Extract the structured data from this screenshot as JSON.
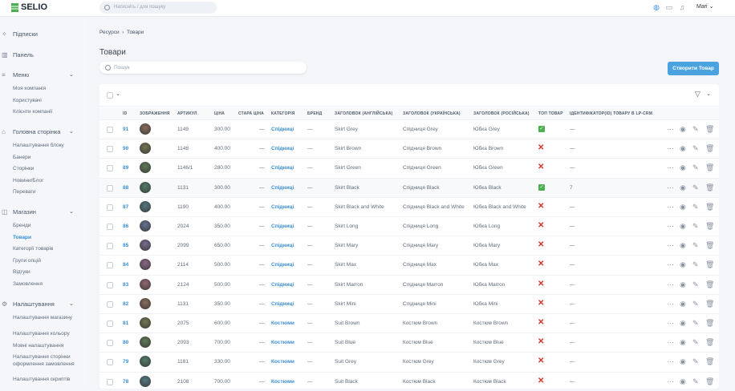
{
  "header": {
    "logo": "SELIO",
    "search_placeholder": "Натисніть / для пошуку",
    "user": "Mari"
  },
  "sidebar": {
    "top": [
      {
        "label": "Підписки",
        "icon": "sparkles-icon"
      },
      {
        "label": "Панель",
        "icon": "chart-icon"
      }
    ],
    "groups": [
      {
        "label": "Меню",
        "icon": "menu-icon",
        "items": [
          "Моя компанія",
          "Користувачі",
          "Клієнти компанії"
        ]
      },
      {
        "label": "Головна сторінка",
        "icon": "home-icon",
        "items": [
          "Налаштування блоку",
          "Банери",
          "Сторінки",
          "Новини/Блог",
          "Переваги"
        ]
      },
      {
        "label": "Магазин",
        "icon": "bag-icon",
        "items": [
          "Бренди",
          "Товари",
          "Категорії товарів",
          "Групи опцій",
          "Відгуки",
          "Замовлення"
        ]
      },
      {
        "label": "Налаштування",
        "icon": "gear-icon",
        "items": [
          "Налаштування магазину",
          "Налаштування кольору",
          "Мовні налаштування",
          "Налаштування сторінки оформлення замовлення",
          "Налаштування скриптів"
        ]
      }
    ],
    "active": "Товари"
  },
  "breadcrumb": [
    "Ресурси",
    "Товари"
  ],
  "page_title": "Товари",
  "search_placeholder": "Пошук",
  "create_button": "Створити Товар",
  "table": {
    "columns": [
      "ID",
      "ЗОБРАЖЕННЯ",
      "АРТИКУЛ",
      "ЦІНА",
      "СТАРА ЦІНА",
      "КАТЕГОРІЯ",
      "БРЕНД",
      "ЗАГОЛОВОК (АНГЛІЙСЬКА)",
      "ЗАГОЛОВОК (УКРАЇНСЬКА)",
      "ЗАГОЛОВОК (РОСІЙСЬКА)",
      "ТОП ТОВАР",
      "ІДЕНТИФІКАТОР(ID) ТОВАРУ В LP-CRM"
    ],
    "rows": [
      {
        "id": "91",
        "sku": "1149",
        "price": "300.00",
        "old": "—",
        "cat": "Спідниці",
        "brand": "—",
        "en": "Skirt Grey",
        "uk": "Спідниця Grey",
        "ru": "Юбка Grey",
        "top": true,
        "crm": "—"
      },
      {
        "id": "90",
        "sku": "1148",
        "price": "400.00",
        "old": "—",
        "cat": "Спідниці",
        "brand": "—",
        "en": "Skirt Brown",
        "uk": "Спідниця Brown",
        "ru": "Юбка Brown",
        "top": false,
        "crm": "—"
      },
      {
        "id": "89",
        "sku": "1146/1",
        "price": "280.00",
        "old": "—",
        "cat": "Спідниці",
        "brand": "—",
        "en": "Skirt Green",
        "uk": "Спідниця Green",
        "ru": "Юбка Green",
        "top": false,
        "crm": "—"
      },
      {
        "id": "88",
        "sku": "1131",
        "price": "300.00",
        "old": "—",
        "cat": "Спідниці",
        "brand": "—",
        "en": "Skirt Black",
        "uk": "Спідниця Black",
        "ru": "Юбка Black",
        "top": true,
        "crm": "7"
      },
      {
        "id": "87",
        "sku": "1190",
        "price": "400.00",
        "old": "—",
        "cat": "Спідниці",
        "brand": "—",
        "en": "Skirt Black and White",
        "uk": "Спідниця Black and White",
        "ru": "Юбка Black and White",
        "top": false,
        "crm": "—"
      },
      {
        "id": "86",
        "sku": "2024",
        "price": "350.00",
        "old": "—",
        "cat": "Спідниці",
        "brand": "—",
        "en": "Skirt Long",
        "uk": "Спідниця Long",
        "ru": "Юбка Long",
        "top": false,
        "crm": "—"
      },
      {
        "id": "85",
        "sku": "2099",
        "price": "650.00",
        "old": "—",
        "cat": "Спідниці",
        "brand": "—",
        "en": "Skirt Mary",
        "uk": "Спідниця Mary",
        "ru": "Юбка Mary",
        "top": false,
        "crm": "—"
      },
      {
        "id": "84",
        "sku": "2114",
        "price": "500.00",
        "old": "—",
        "cat": "Спідниці",
        "brand": "—",
        "en": "Skirt Max",
        "uk": "Спідниця Max",
        "ru": "Юбка Max",
        "top": false,
        "crm": "—"
      },
      {
        "id": "83",
        "sku": "2124",
        "price": "500.00",
        "old": "—",
        "cat": "Спідниці",
        "brand": "—",
        "en": "Skirt Marron",
        "uk": "Спідниця Marron",
        "ru": "Юбка Marron",
        "top": false,
        "crm": "—"
      },
      {
        "id": "82",
        "sku": "1131",
        "price": "350.00",
        "old": "—",
        "cat": "Спідниці",
        "brand": "—",
        "en": "Skirt Mini",
        "uk": "Спідниця Mini",
        "ru": "Юбка Mini",
        "top": false,
        "crm": "—"
      },
      {
        "id": "81",
        "sku": "2075",
        "price": "600.00",
        "old": "—",
        "cat": "Костюми",
        "brand": "—",
        "en": "Suit Brown",
        "uk": "Костюм Brown",
        "ru": "Костюм Brown",
        "top": false,
        "crm": "—"
      },
      {
        "id": "80",
        "sku": "2093",
        "price": "700.00",
        "old": "—",
        "cat": "Костюми",
        "brand": "—",
        "en": "Suit Blue",
        "uk": "Костюм Blue",
        "ru": "Костюм Blue",
        "top": false,
        "crm": "—"
      },
      {
        "id": "79",
        "sku": "1181",
        "price": "330.00",
        "old": "—",
        "cat": "Костюми",
        "brand": "—",
        "en": "Suit Grey",
        "uk": "Костюм Grey",
        "ru": "Костюм Grey",
        "top": false,
        "crm": "—"
      },
      {
        "id": "78",
        "sku": "2108",
        "price": "700.00",
        "old": "—",
        "cat": "Костюми",
        "brand": "—",
        "en": "Suit Black",
        "uk": "Костюм Black",
        "ru": "Костюм Black",
        "top": false,
        "crm": "—"
      }
    ]
  },
  "colors": {
    "accent": "#4aa3df",
    "link": "#3a8fd8",
    "yes": "#4caf50",
    "no": "#d9342b"
  }
}
